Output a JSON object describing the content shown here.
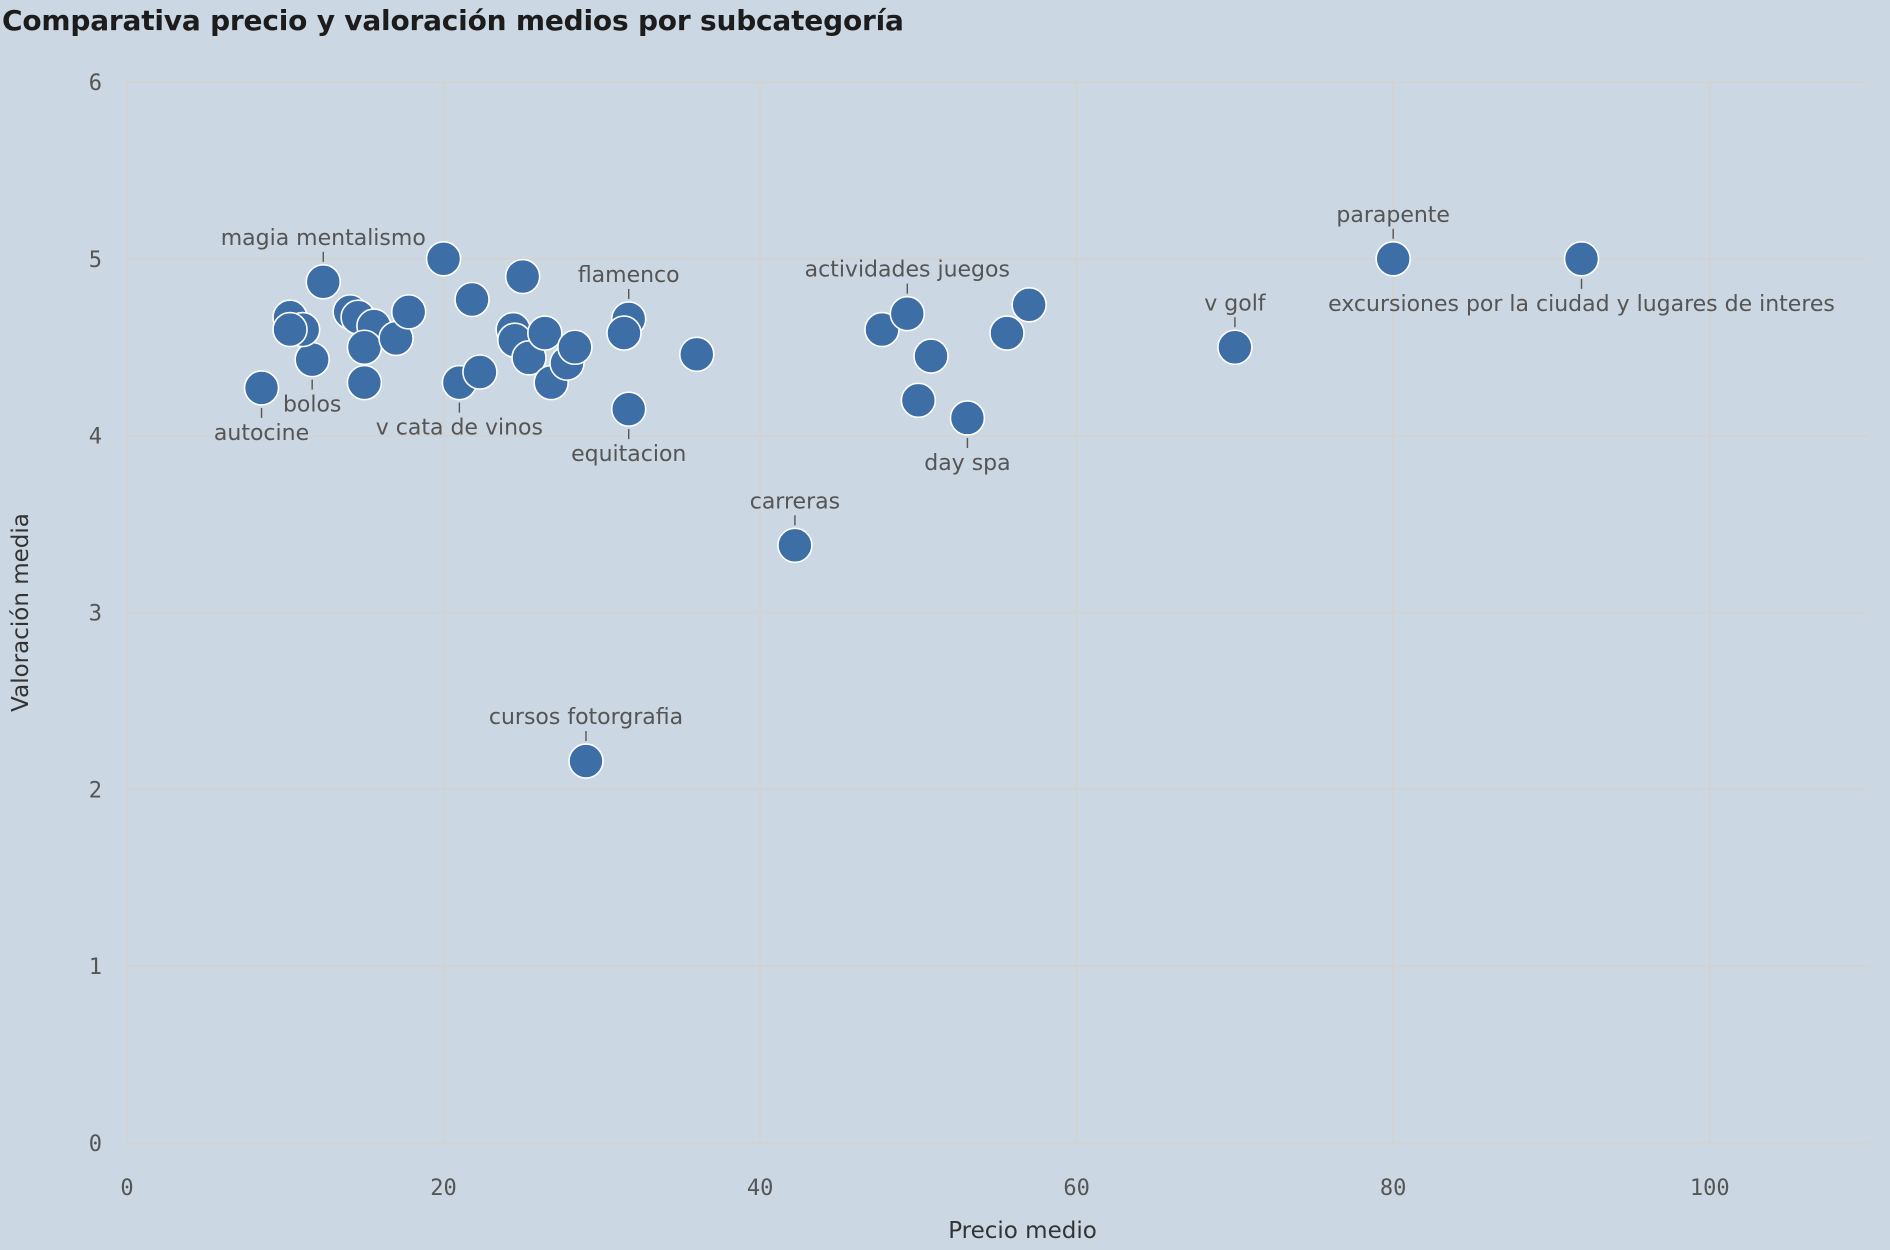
{
  "title": "Comparativa precio y valoración medios por subcategoría",
  "colors": {
    "background": "#cbd7e2",
    "point": "#3d6ea6",
    "grid": "#d4d2cc"
  },
  "chart_data": {
    "type": "scatter",
    "title": "Comparativa precio y valoración medios por subcategoría",
    "xlabel": "Precio medio",
    "ylabel": "Valoración media",
    "xlim": [
      0,
      110
    ],
    "ylim": [
      0,
      6
    ],
    "xticks": [
      0,
      20,
      40,
      60,
      80,
      100
    ],
    "yticks": [
      0,
      1,
      2,
      3,
      4,
      5,
      6
    ],
    "grid": true,
    "points": [
      {
        "x": 8.5,
        "y": 4.27,
        "label": "autocine",
        "label_pos": "below"
      },
      {
        "x": 11.7,
        "y": 4.43,
        "label": "bolos",
        "label_pos": "below"
      },
      {
        "x": 12.4,
        "y": 4.87,
        "label": "magia mentalismo",
        "label_pos": "above"
      },
      {
        "x": 10.3,
        "y": 4.67
      },
      {
        "x": 11.1,
        "y": 4.6
      },
      {
        "x": 10.3,
        "y": 4.6
      },
      {
        "x": 14.1,
        "y": 4.7
      },
      {
        "x": 14.6,
        "y": 4.67
      },
      {
        "x": 15.6,
        "y": 4.62
      },
      {
        "x": 15.0,
        "y": 4.5
      },
      {
        "x": 17.0,
        "y": 4.55
      },
      {
        "x": 17.8,
        "y": 4.7
      },
      {
        "x": 15.0,
        "y": 4.3
      },
      {
        "x": 20.0,
        "y": 5.0
      },
      {
        "x": 21.8,
        "y": 4.77
      },
      {
        "x": 21.0,
        "y": 4.3,
        "label": "v cata de vinos",
        "label_pos": "below"
      },
      {
        "x": 22.3,
        "y": 4.36
      },
      {
        "x": 25.0,
        "y": 4.9
      },
      {
        "x": 24.4,
        "y": 4.6
      },
      {
        "x": 24.5,
        "y": 4.54
      },
      {
        "x": 25.4,
        "y": 4.44
      },
      {
        "x": 26.4,
        "y": 4.58
      },
      {
        "x": 26.8,
        "y": 4.3
      },
      {
        "x": 27.8,
        "y": 4.41
      },
      {
        "x": 28.3,
        "y": 4.5
      },
      {
        "x": 31.7,
        "y": 4.66,
        "label": "flamenco",
        "label_pos": "above"
      },
      {
        "x": 31.4,
        "y": 4.58
      },
      {
        "x": 31.7,
        "y": 4.15,
        "label": "equitacion",
        "label_pos": "below"
      },
      {
        "x": 36.0,
        "y": 4.46
      },
      {
        "x": 42.2,
        "y": 3.38,
        "label": "carreras",
        "label_pos": "above"
      },
      {
        "x": 29.0,
        "y": 2.16,
        "label": "cursos fotorgrafia",
        "label_pos": "above"
      },
      {
        "x": 47.7,
        "y": 4.6
      },
      {
        "x": 49.3,
        "y": 4.69,
        "label": "actividades juegos",
        "label_pos": "above"
      },
      {
        "x": 50.8,
        "y": 4.45
      },
      {
        "x": 50.0,
        "y": 4.2
      },
      {
        "x": 53.1,
        "y": 4.1,
        "label": "day spa",
        "label_pos": "below"
      },
      {
        "x": 55.6,
        "y": 4.58
      },
      {
        "x": 57.0,
        "y": 4.74
      },
      {
        "x": 70.0,
        "y": 4.5,
        "label": "v golf",
        "label_pos": "above"
      },
      {
        "x": 80.0,
        "y": 5.0,
        "label": "parapente",
        "label_pos": "above"
      },
      {
        "x": 91.9,
        "y": 5.0,
        "label": "excursiones por la ciudad y lugares de interes",
        "label_pos": "below"
      }
    ]
  }
}
